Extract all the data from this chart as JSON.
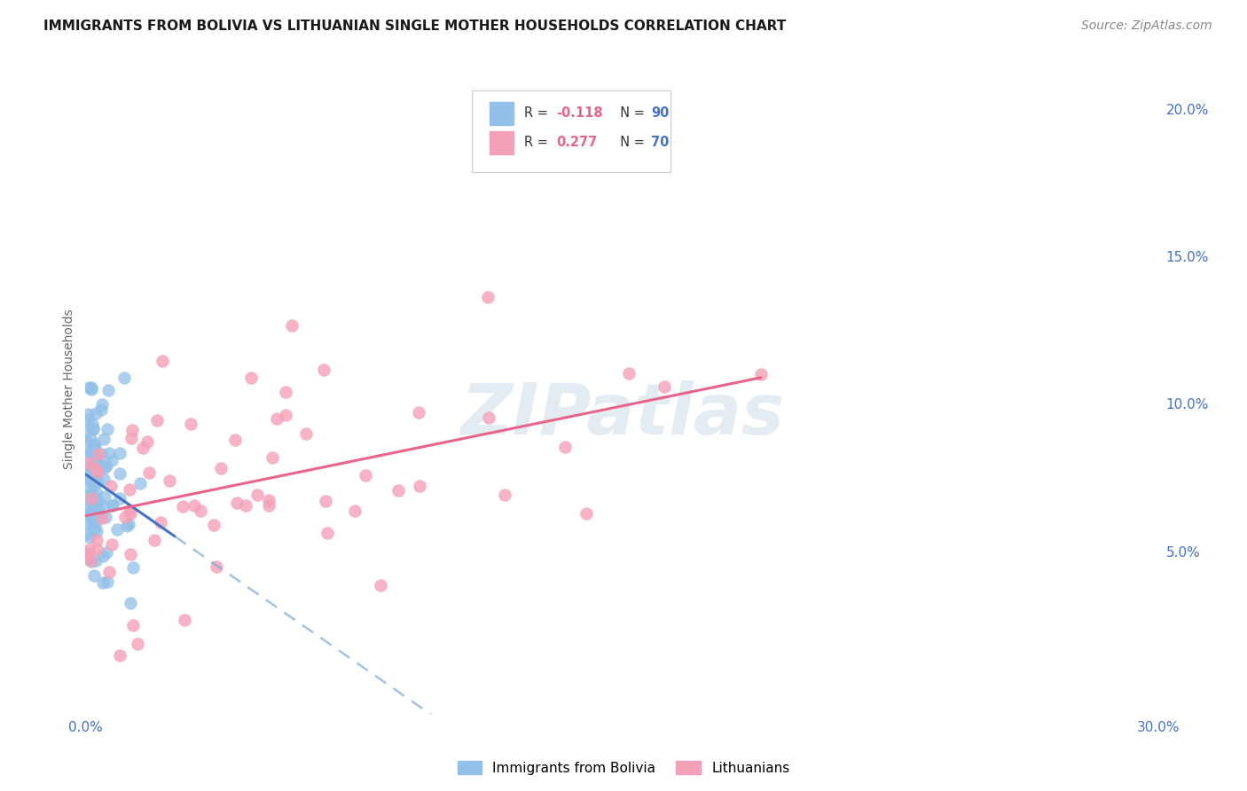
{
  "title": "IMMIGRANTS FROM BOLIVIA VS LITHUANIAN SINGLE MOTHER HOUSEHOLDS CORRELATION CHART",
  "source": "Source: ZipAtlas.com",
  "ylabel": "Single Mother Households",
  "xlim": [
    0.0,
    0.3
  ],
  "ylim": [
    -0.005,
    0.215
  ],
  "xtick_positions": [
    0.0,
    0.05,
    0.1,
    0.15,
    0.2,
    0.25,
    0.3
  ],
  "xtick_labels": [
    "0.0%",
    "",
    "",
    "",
    "",
    "",
    "30.0%"
  ],
  "ytick_right_positions": [
    0.05,
    0.1,
    0.15,
    0.2
  ],
  "ytick_right_labels": [
    "5.0%",
    "10.0%",
    "15.0%",
    "20.0%"
  ],
  "legend_blue_label": "Immigrants from Bolivia",
  "legend_pink_label": "Lithuanians",
  "R_blue": -0.118,
  "N_blue": 90,
  "R_pink": 0.277,
  "N_pink": 70,
  "color_blue": "#92c0e8",
  "color_pink": "#f4a0b8",
  "color_line_blue_solid": "#4472c4",
  "color_line_blue_dashed": "#7aaad8",
  "color_line_pink": "#e8648a",
  "watermark": "ZIPatlas",
  "background_color": "#ffffff",
  "grid_color": "#e0e0e0",
  "title_fontsize": 11,
  "source_fontsize": 10,
  "tick_fontsize": 11,
  "ylabel_fontsize": 10
}
